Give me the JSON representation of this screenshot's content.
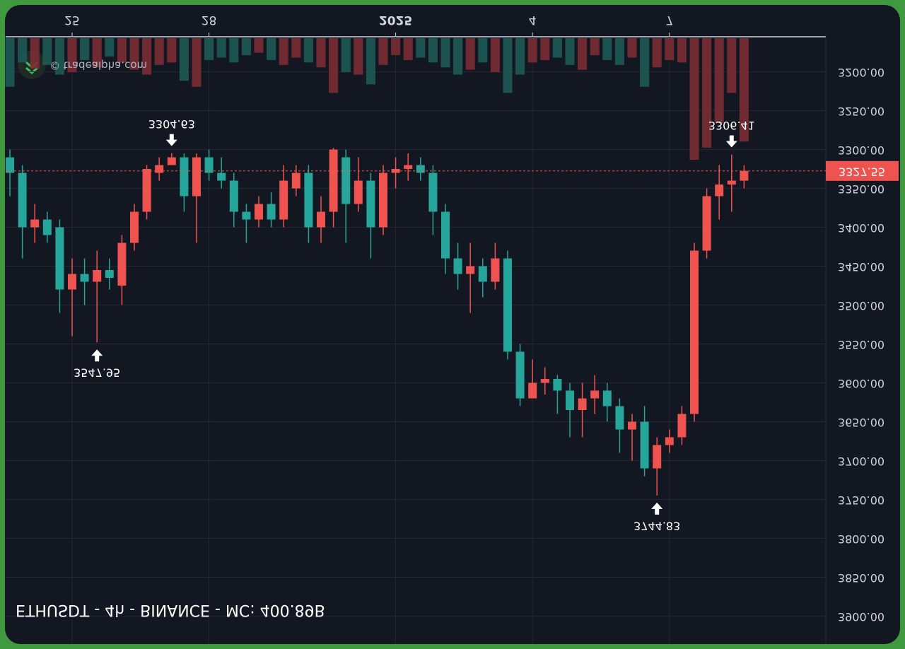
{
  "chart_data": {
    "type": "candlestick",
    "title": "ETHUSDT - 4h - BINANCE - MC: 400.89B",
    "watermark": "© tradealpha.com",
    "categories": [
      null,
      null,
      null,
      null,
      null,
      "25",
      null,
      null,
      null,
      null,
      null,
      null,
      null,
      null,
      null,
      null,
      "28",
      null,
      null,
      null,
      null,
      null,
      null,
      null,
      null,
      null,
      null,
      null,
      null,
      null,
      null,
      "2025",
      null,
      null,
      null,
      null,
      null,
      null,
      null,
      null,
      null,
      null,
      "4",
      null,
      null,
      null,
      null,
      null,
      null,
      null,
      null,
      null,
      null,
      "7",
      null,
      null,
      null,
      null,
      null,
      null
    ],
    "open": [
      3310,
      3330,
      3400,
      3390,
      3400,
      3480,
      3460,
      3470,
      3455,
      3475,
      3420,
      3380,
      3330,
      3320,
      3310,
      3360,
      3310,
      3330,
      3340,
      3380,
      3390,
      3370,
      3390,
      3350,
      3330,
      3400,
      3380,
      3310,
      3370,
      3340,
      3400,
      3330,
      3325,
      3320,
      3330,
      3380,
      3440,
      3460,
      3450,
      3470,
      3440,
      3560,
      3620,
      3600,
      3595,
      3610,
      3635,
      3620,
      3610,
      3630,
      3660,
      3650,
      3710,
      3680,
      3670,
      3640,
      3430,
      3360,
      3345,
      3340
    ],
    "high": [
      3360,
      3440,
      3420,
      3420,
      3510,
      3540,
      3500,
      3547.95,
      3480,
      3500,
      3430,
      3390,
      3340,
      3320,
      3380,
      3420,
      3340,
      3350,
      3400,
      3420,
      3400,
      3400,
      3400,
      3360,
      3420,
      3420,
      3400,
      3420,
      3380,
      3440,
      3410,
      3350,
      3340,
      3340,
      3410,
      3460,
      3480,
      3510,
      3490,
      3480,
      3570,
      3630,
      3620,
      3615,
      3640,
      3670,
      3670,
      3640,
      3650,
      3690,
      3700,
      3720,
      3744.83,
      3690,
      3680,
      3650,
      3440,
      3390,
      3380,
      3350
    ],
    "low": [
      3300,
      3320,
      3370,
      3380,
      3390,
      3440,
      3440,
      3430,
      3440,
      3410,
      3370,
      3320,
      3310,
      3304.63,
      3305,
      3305,
      3300,
      3310,
      3330,
      3370,
      3360,
      3355,
      3320,
      3320,
      3320,
      3360,
      3298,
      3300,
      3310,
      3330,
      3320,
      3310,
      3305,
      3310,
      3320,
      3370,
      3420,
      3420,
      3440,
      3420,
      3430,
      3550,
      3570,
      3580,
      3590,
      3600,
      3600,
      3590,
      3600,
      3620,
      3640,
      3630,
      3670,
      3660,
      3630,
      3420,
      3350,
      3320,
      3306.41,
      3320
    ],
    "close": [
      3330,
      3400,
      3390,
      3410,
      3480,
      3460,
      3470,
      3455,
      3465,
      3420,
      3380,
      3325,
      3320,
      3310,
      3360,
      3310,
      3330,
      3340,
      3380,
      3390,
      3370,
      3390,
      3340,
      3330,
      3400,
      3380,
      3300,
      3370,
      3340,
      3400,
      3330,
      3325,
      3320,
      3330,
      3380,
      3440,
      3460,
      3450,
      3470,
      3440,
      3560,
      3620,
      3600,
      3595,
      3610,
      3635,
      3620,
      3610,
      3630,
      3660,
      3650,
      3710,
      3680,
      3670,
      3640,
      3430,
      3360,
      3345,
      3340,
      3327.55
    ],
    "volume": [
      40,
      20,
      25,
      22,
      30,
      28,
      18,
      24,
      15,
      20,
      26,
      30,
      22,
      20,
      35,
      40,
      18,
      16,
      20,
      14,
      12,
      18,
      22,
      16,
      20,
      24,
      45,
      28,
      30,
      38,
      22,
      14,
      18,
      16,
      20,
      24,
      30,
      26,
      20,
      28,
      45,
      30,
      20,
      18,
      16,
      22,
      26,
      14,
      18,
      22,
      16,
      40,
      24,
      18,
      20,
      100,
      90,
      70,
      45,
      85
    ],
    "up_color": "#26a69a",
    "down_color": "#ef5350",
    "ylim": [
      3155,
      3935
    ],
    "inverted": true,
    "yticks": [
      {
        "value": 3200,
        "label": "3200.00"
      },
      {
        "value": 3250,
        "label": "3250.00"
      },
      {
        "value": 3300,
        "label": "3300.00"
      },
      {
        "value": 3350,
        "label": "3350.00"
      },
      {
        "value": 3400,
        "label": "3400.00"
      },
      {
        "value": 3450,
        "label": "3450.00"
      },
      {
        "value": 3500,
        "label": "3500.00"
      },
      {
        "value": 3550,
        "label": "3550.00"
      },
      {
        "value": 3600,
        "label": "3600.00"
      },
      {
        "value": 3650,
        "label": "3650.00"
      },
      {
        "value": 3700,
        "label": "3700.00"
      },
      {
        "value": 3750,
        "label": "3750.00"
      },
      {
        "value": 3800,
        "label": "3800.00"
      },
      {
        "value": 3850,
        "label": "3850.00"
      },
      {
        "value": 3900,
        "label": "3900.00"
      }
    ],
    "grid": true
  }
}
